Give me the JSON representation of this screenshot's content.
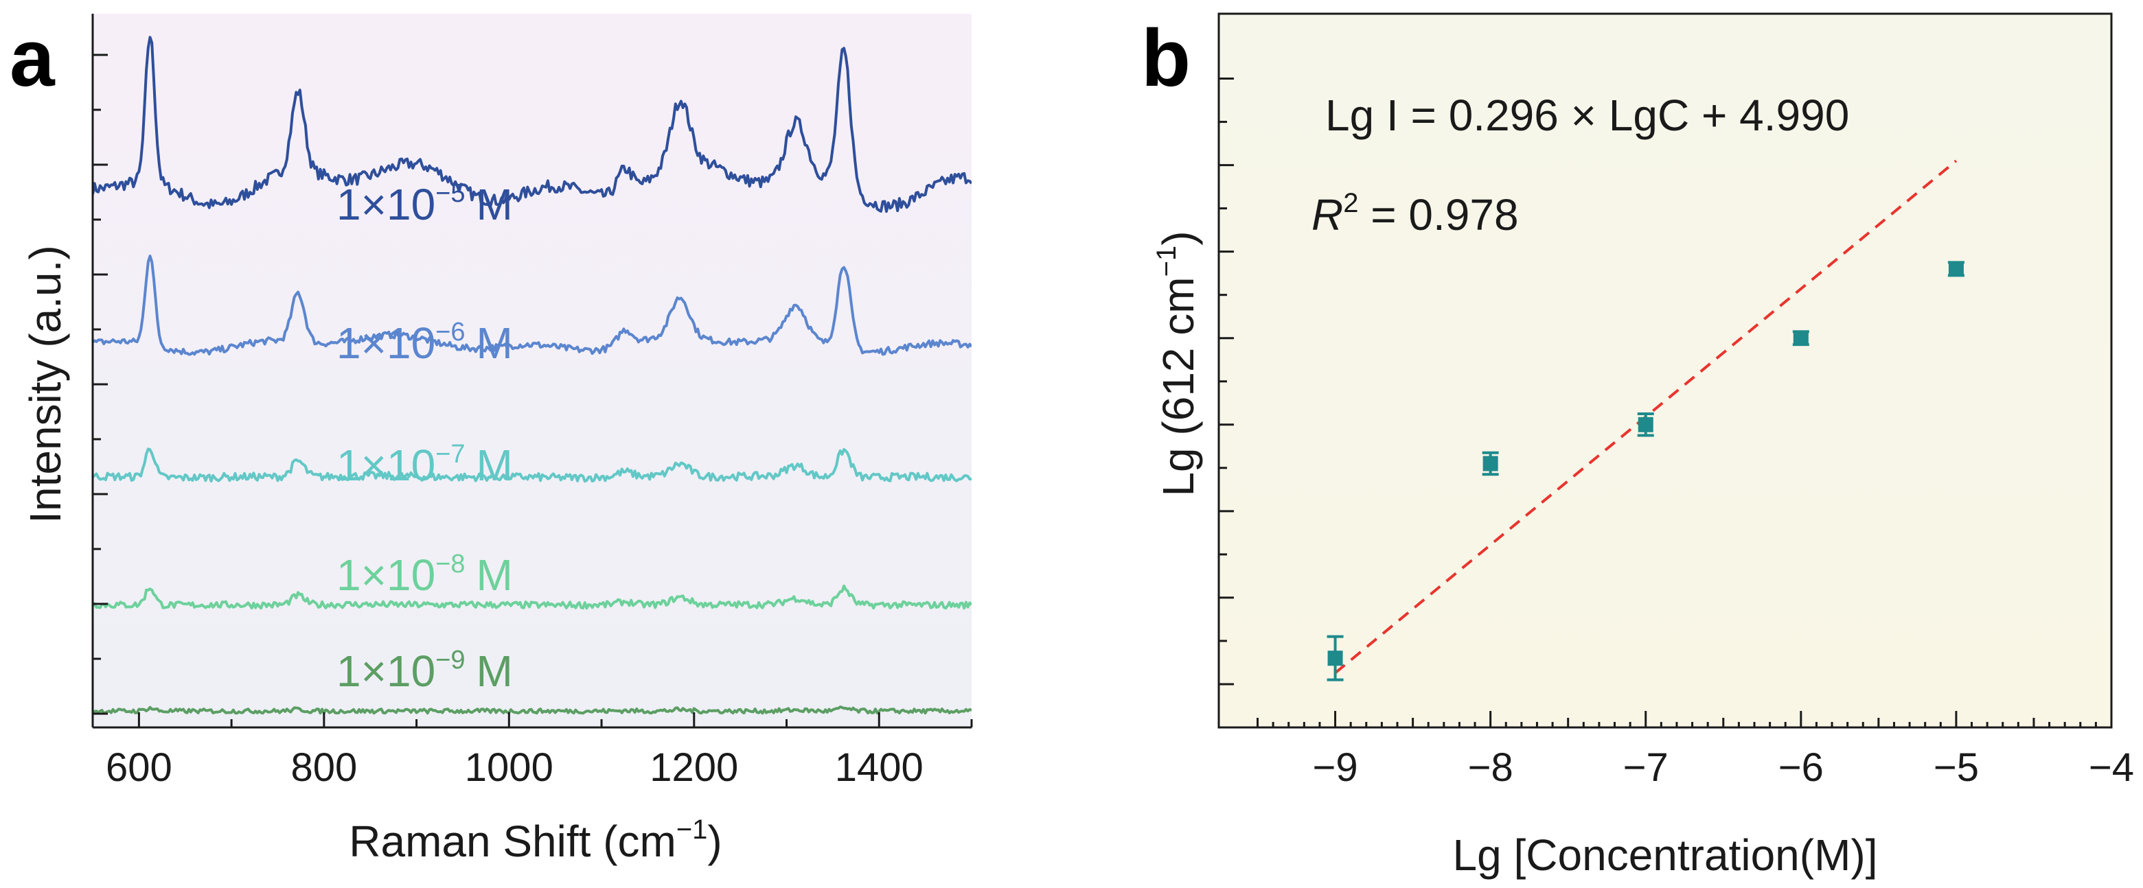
{
  "chart_data": [
    {
      "panel": "a",
      "type": "line",
      "title": "",
      "xlabel": "Raman Shift (cm",
      "xlabel_sup": "−1",
      "xlabel_end": ")",
      "ylabel": "Intensity (a.u.)",
      "xlim": [
        550,
        1500
      ],
      "xticks": [
        600,
        800,
        1000,
        1200,
        1400
      ],
      "xtick_labels": [
        "600",
        "800",
        "1000",
        "1200",
        "1400"
      ],
      "peaks_cm1": [
        612,
        772,
        1125,
        1185,
        1310,
        1362
      ],
      "series": [
        {
          "name": "1×10−5 M",
          "text": "1×10",
          "exp": "−5",
          "unit": "M",
          "color": "#2e4f9b",
          "offset": 10.0,
          "scale": 1.0,
          "noise": 0.11
        },
        {
          "name": "1×10−6 M",
          "text": "1×10",
          "exp": "−6",
          "unit": "M",
          "color": "#5b86cf",
          "offset": 7.05,
          "scale": 0.62,
          "noise": 0.06
        },
        {
          "name": "1×10−7 M",
          "text": "1×10",
          "exp": "−7",
          "unit": "M",
          "color": "#62c8c6",
          "offset": 4.6,
          "scale": 0.2,
          "noise": 0.07
        },
        {
          "name": "1×10−8 M",
          "text": "1×10",
          "exp": "−8",
          "unit": "M",
          "color": "#6dd19b",
          "offset": 2.25,
          "scale": 0.12,
          "noise": 0.06
        },
        {
          "name": "1×10−9 M",
          "text": "1×10",
          "exp": "−9",
          "unit": "M",
          "color": "#5c9e63",
          "offset": 0.3,
          "scale": 0.02,
          "noise": 0.04
        }
      ]
    },
    {
      "panel": "b",
      "type": "scatter",
      "title": "",
      "xlabel": "Lg [Concentration(M)]",
      "ylabel": "Lg (612 cm",
      "ylabel_sup": "−1",
      "ylabel_end": ")",
      "xlim": [
        -9.75,
        -4.0
      ],
      "ylim": [
        2.2,
        3.85
      ],
      "xticks": [
        -9,
        -8,
        -7,
        -6,
        -5,
        -4
      ],
      "xtick_labels": [
        "−9",
        "−8",
        "−7",
        "−6",
        "−5",
        "−4"
      ],
      "x": [
        -9,
        -8,
        -7,
        -6,
        -5
      ],
      "y": [
        2.36,
        2.81,
        2.9,
        3.1,
        3.26
      ],
      "yerr": [
        0.05,
        0.025,
        0.025,
        0.015,
        0.015
      ],
      "fit": {
        "slope": 0.296,
        "intercept": 4.99,
        "r2": 0.978,
        "x_range": [
          -9,
          -5
        ]
      },
      "equation": "Lg I = 0.296 × LgC + 4.990",
      "r2_symbol": "R",
      "r2_sup": "2",
      "r2_value": " = 0.978",
      "marker_color": "#1e8a8c",
      "fit_color": "#e8342e"
    }
  ],
  "panel_labels": [
    "a",
    "b"
  ]
}
